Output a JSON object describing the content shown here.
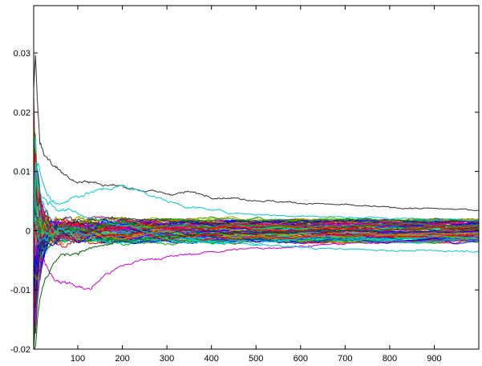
{
  "chart_data": {
    "type": "line",
    "title": "",
    "xlabel": "",
    "ylabel": "",
    "xlim": [
      1,
      1000
    ],
    "ylim": [
      -0.02,
      0.038
    ],
    "grid": false,
    "legend": "none",
    "x_ticks": [
      100,
      200,
      300,
      400,
      500,
      600,
      700,
      800,
      900
    ],
    "x_tick_labels": [
      "100",
      "200",
      "300",
      "400",
      "500",
      "600",
      "700",
      "800",
      "900"
    ],
    "y_ticks": [
      -0.02,
      -0.01,
      0,
      0.01,
      0.02,
      0.03
    ],
    "y_tick_labels": [
      "-0.02",
      "-0.01",
      "0",
      "0.01",
      "0.02",
      "0.03"
    ],
    "x": [
      1,
      5,
      10,
      15,
      20,
      30,
      40,
      50,
      70,
      100,
      130,
      160,
      200,
      250,
      300,
      350,
      400,
      450,
      500,
      550,
      600,
      650,
      700,
      750,
      800,
      850,
      900,
      950,
      1000
    ],
    "series_count": 100,
    "series": [
      {
        "color": "#333333",
        "values": [
          0.024,
          0.03,
          0.022,
          0.015,
          0.014,
          0.0125,
          0.0115,
          0.011,
          0.0095,
          0.0085,
          0.0082,
          0.0078,
          0.0075,
          0.0068,
          0.0062,
          0.0065,
          0.0058,
          0.0055,
          0.0052,
          0.0049,
          0.0047,
          0.0045,
          0.0043,
          0.0041,
          0.0039,
          0.0038,
          0.0037,
          0.0036,
          0.0035
        ]
      },
      {
        "color": "#cc00cc",
        "values": [
          -0.012,
          -0.016,
          -0.011,
          -0.006,
          -0.004,
          -0.0055,
          -0.007,
          -0.008,
          -0.0085,
          -0.0095,
          -0.0098,
          -0.0075,
          -0.006,
          -0.0048,
          -0.0045,
          -0.004,
          -0.0036,
          -0.0032,
          -0.003,
          -0.0028,
          -0.0026,
          -0.0024,
          -0.0022,
          -0.002,
          -0.0019,
          -0.0018,
          -0.0017,
          -0.0016,
          -0.0015
        ]
      },
      {
        "color": "#00cccc",
        "values": [
          0.005,
          0.012,
          0.009,
          0.007,
          0.0055,
          0.005,
          0.0045,
          0.004,
          0.0035,
          0.003,
          0.002,
          0.0015,
          0.001,
          0.0,
          -0.001,
          -0.0015,
          -0.002,
          -0.0022,
          -0.0024,
          -0.0026,
          -0.0028,
          -0.003,
          -0.0031,
          -0.0032,
          -0.0033,
          -0.0034,
          -0.0034,
          -0.0034,
          -0.0034
        ]
      },
      {
        "color": "#00cccc",
        "values": [
          0.0,
          0.006,
          0.01,
          0.009,
          0.008,
          0.006,
          0.005,
          0.0045,
          0.005,
          0.006,
          0.0065,
          0.007,
          0.0075,
          0.0065,
          0.005,
          0.004,
          0.0035,
          0.003,
          0.0028,
          0.0026,
          0.0025,
          0.0024,
          0.0023,
          0.0022,
          0.0021,
          0.002,
          0.002,
          0.0019,
          0.0018
        ]
      },
      {
        "color": "#006600",
        "values": [
          -0.02,
          -0.018,
          -0.014,
          -0.012,
          -0.01,
          -0.008,
          -0.006,
          -0.005,
          -0.004,
          -0.0035,
          -0.003,
          -0.0025,
          -0.002,
          -0.0015,
          -0.001,
          -0.0008,
          -0.0006,
          -0.0004,
          -0.0003,
          -0.0002,
          -0.0001,
          0.0,
          0.0,
          0.0001,
          0.0001,
          0.0002,
          0.0002,
          0.0002,
          0.0002
        ]
      }
    ]
  }
}
